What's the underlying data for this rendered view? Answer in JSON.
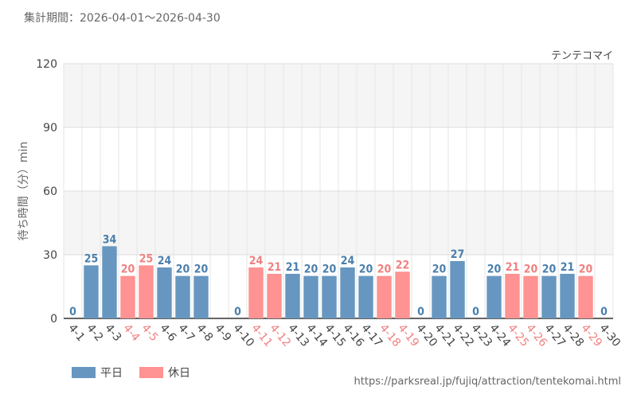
{
  "header": {
    "period_label": "集計期間：2026-04-01～2026-04-30",
    "attraction_name": "テンテコマイ"
  },
  "legend": {
    "weekday_label": "平日",
    "holiday_label": "休日"
  },
  "footer": {
    "url": "https://parksreal.jp/fujiq/attraction/tentekomai.html"
  },
  "colors": {
    "weekday": "#6797c0",
    "holiday": "#ff9292",
    "weekday_text": "#4a7fad",
    "holiday_text": "#f08080"
  },
  "chart_data": {
    "type": "bar",
    "title": "テンテコマイ",
    "ylabel": "待ち時間（分）min",
    "xlabel": "",
    "ylim": [
      0,
      120
    ],
    "yticks": [
      0,
      30,
      60,
      90,
      120
    ],
    "grid": true,
    "legend_position": "bottom-left",
    "categories": [
      "4-1",
      "4-2",
      "4-3",
      "4-4",
      "4-5",
      "4-6",
      "4-7",
      "4-8",
      "4-9",
      "4-10",
      "4-11",
      "4-12",
      "4-13",
      "4-14",
      "4-15",
      "4-16",
      "4-17",
      "4-18",
      "4-19",
      "4-20",
      "4-21",
      "4-22",
      "4-23",
      "4-24",
      "4-25",
      "4-26",
      "4-27",
      "4-28",
      "4-29",
      "4-30"
    ],
    "values": [
      0,
      25,
      34,
      20,
      25,
      24,
      20,
      20,
      null,
      0,
      24,
      21,
      21,
      20,
      20,
      24,
      20,
      20,
      22,
      0,
      20,
      27,
      0,
      20,
      21,
      20,
      20,
      21,
      20,
      0
    ],
    "day_type": [
      "weekday",
      "weekday",
      "weekday",
      "holiday",
      "holiday",
      "weekday",
      "weekday",
      "weekday",
      "weekday",
      "weekday",
      "holiday",
      "holiday",
      "weekday",
      "weekday",
      "weekday",
      "weekday",
      "weekday",
      "holiday",
      "holiday",
      "weekday",
      "weekday",
      "weekday",
      "weekday",
      "weekday",
      "holiday",
      "holiday",
      "weekday",
      "weekday",
      "holiday",
      "weekday"
    ],
    "series": [
      {
        "name": "平日",
        "key": "weekday"
      },
      {
        "name": "休日",
        "key": "holiday"
      }
    ]
  }
}
